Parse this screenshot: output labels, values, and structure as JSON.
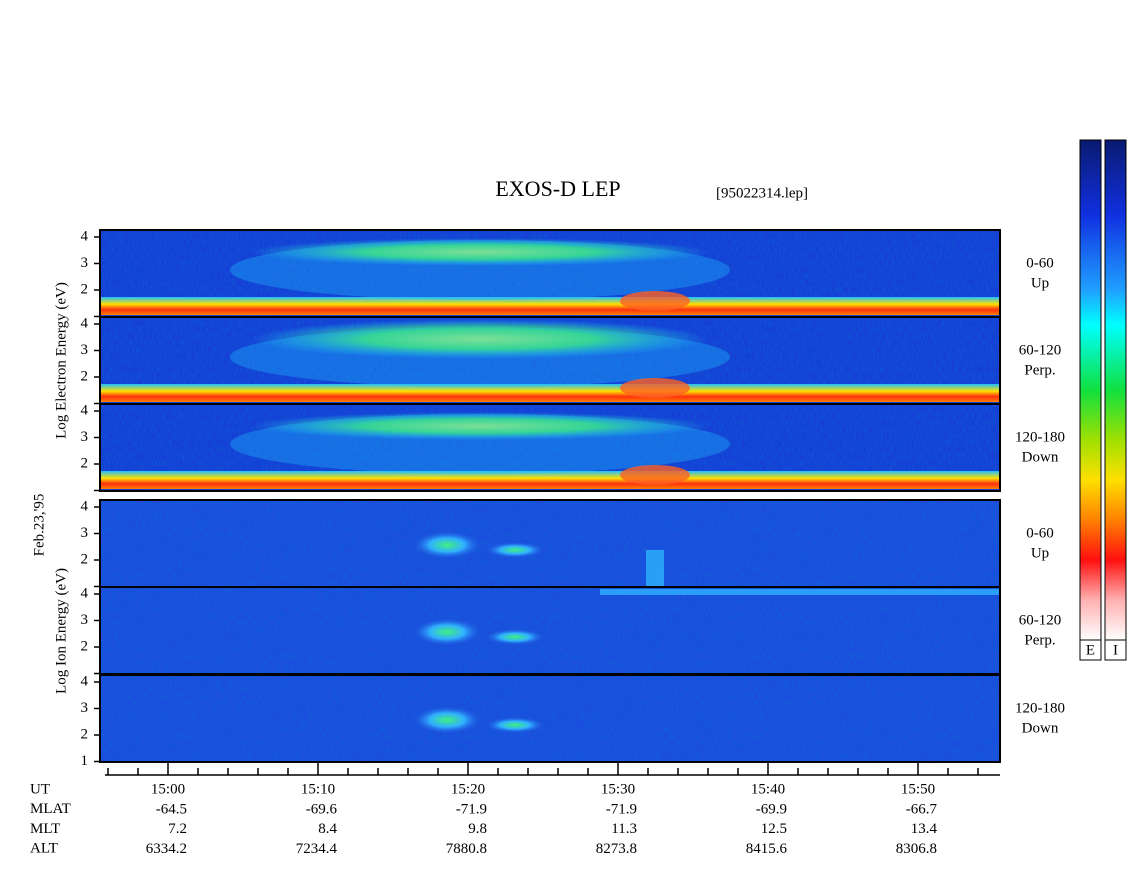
{
  "header": {
    "title": "EXOS-D LEP",
    "file": "[95022314.lep]"
  },
  "date": "Feb.23,'95",
  "panels": [
    {
      "ylabel": "Log Electron Energy (eV)",
      "kind": "electron",
      "rows": [
        {
          "angle": "0-60",
          "dir": "Up"
        },
        {
          "angle": "60-120",
          "dir": "Perp."
        },
        {
          "angle": "120-180",
          "dir": "Down"
        }
      ]
    },
    {
      "ylabel": "Log Ion Energy (eV)",
      "kind": "ion",
      "rows": [
        {
          "angle": "0-60",
          "dir": "Up"
        },
        {
          "angle": "60-120",
          "dir": "Perp."
        },
        {
          "angle": "120-180",
          "dir": "Down"
        }
      ]
    }
  ],
  "yticks": [
    "4",
    "3",
    "2",
    "1"
  ],
  "colorbar": {
    "labels": [
      "E",
      "I"
    ]
  },
  "table": {
    "labels": [
      "UT",
      "MLAT",
      "MLT",
      "ALT"
    ],
    "ut": [
      "15:00",
      "15:10",
      "15:20",
      "15:30",
      "15:40",
      "15:50"
    ],
    "rows": [
      [
        "-64.5",
        "-69.6",
        "-71.9",
        "-71.9",
        "-69.9",
        "-66.7"
      ],
      [
        "7.2",
        "8.4",
        "9.8",
        "11.3",
        "12.5",
        "13.4"
      ],
      [
        "6334.2",
        "7234.4",
        "7880.8",
        "8273.8",
        "8415.6",
        "8306.8"
      ]
    ]
  }
}
